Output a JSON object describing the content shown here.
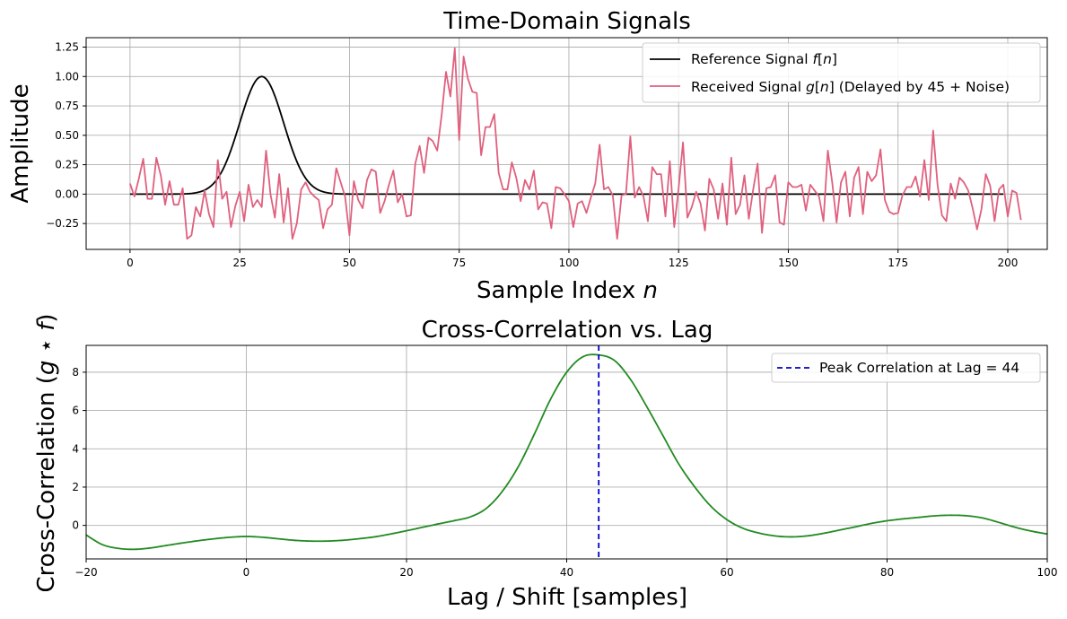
{
  "chart_data": [
    {
      "type": "line",
      "title": "Time-Domain Signals",
      "xlabel": "Sample Index n",
      "ylabel": "Amplitude",
      "xlim": [
        -10,
        209
      ],
      "ylim": [
        -0.47,
        1.33
      ],
      "xticks": [
        0,
        25,
        50,
        75,
        100,
        125,
        150,
        175,
        200
      ],
      "yticks": [
        -0.25,
        0.0,
        0.25,
        0.5,
        0.75,
        1.0,
        1.25
      ],
      "xtick_labels": [
        "0",
        "25",
        "50",
        "75",
        "100",
        "125",
        "150",
        "175",
        "200"
      ],
      "ytick_labels": [
        "−0.25",
        "0.00",
        "0.25",
        "0.50",
        "0.75",
        "1.00",
        "1.25"
      ],
      "grid": true,
      "legend_position": "top-right",
      "series": [
        {
          "name": "Reference Signal f[n]",
          "color": "#000000",
          "shape": "gaussian",
          "center": 30,
          "amplitude": 1.0,
          "width": 5,
          "x_range": [
            0,
            199
          ]
        },
        {
          "name": "Received Signal g[n] (Delayed by 45 + Noise)",
          "color": "#e0607e",
          "x_start": 0,
          "values": [
            0.09,
            -0.02,
            0.13,
            0.3,
            -0.04,
            -0.04,
            0.31,
            0.16,
            -0.09,
            0.11,
            -0.09,
            -0.09,
            0.05,
            -0.38,
            -0.35,
            -0.11,
            -0.19,
            0.03,
            -0.17,
            -0.28,
            0.29,
            -0.04,
            0.02,
            -0.28,
            -0.1,
            0.02,
            -0.23,
            0.08,
            -0.11,
            -0.05,
            -0.11,
            0.37,
            0.0,
            -0.2,
            0.17,
            -0.24,
            0.05,
            -0.38,
            -0.25,
            0.04,
            0.1,
            0.02,
            -0.02,
            -0.05,
            -0.29,
            -0.13,
            -0.09,
            0.22,
            0.1,
            -0.02,
            -0.35,
            0.11,
            -0.05,
            -0.12,
            0.12,
            0.21,
            0.19,
            -0.16,
            -0.06,
            0.08,
            0.2,
            -0.07,
            0.0,
            -0.19,
            -0.18,
            0.26,
            0.41,
            0.18,
            0.48,
            0.45,
            0.37,
            0.67,
            1.04,
            0.83,
            1.24,
            0.46,
            1.17,
            0.98,
            0.87,
            0.86,
            0.33,
            0.57,
            0.57,
            0.68,
            0.18,
            0.04,
            0.04,
            0.27,
            0.14,
            -0.06,
            0.12,
            0.04,
            0.2,
            -0.13,
            -0.07,
            -0.08,
            -0.29,
            0.06,
            0.05,
            0.0,
            -0.06,
            -0.28,
            -0.08,
            -0.06,
            -0.16,
            -0.03,
            0.09,
            0.42,
            0.04,
            0.06,
            -0.01,
            -0.38,
            -0.01,
            0.0,
            0.49,
            -0.03,
            0.06,
            -0.02,
            -0.23,
            0.23,
            0.17,
            0.17,
            -0.19,
            0.28,
            -0.28,
            0.05,
            0.44,
            -0.2,
            -0.11,
            0.02,
            -0.08,
            -0.31,
            0.13,
            0.04,
            -0.21,
            0.09,
            -0.26,
            0.31,
            -0.17,
            -0.09,
            0.16,
            -0.21,
            0.04,
            0.26,
            -0.33,
            0.05,
            0.06,
            0.16,
            -0.24,
            -0.26,
            0.1,
            0.06,
            0.06,
            0.08,
            -0.14,
            0.08,
            0.03,
            -0.02,
            -0.23,
            0.37,
            0.1,
            -0.24,
            0.1,
            0.19,
            -0.19,
            0.14,
            0.23,
            -0.17,
            0.19,
            0.11,
            0.16,
            0.38,
            -0.05,
            -0.15,
            -0.17,
            -0.16,
            -0.01,
            0.06,
            0.06,
            0.15,
            -0.02,
            0.29,
            -0.05,
            0.54,
            0.08,
            -0.18,
            -0.23,
            0.09,
            -0.04,
            0.14,
            0.1,
            0.03,
            -0.12,
            -0.3,
            -0.13,
            0.17,
            0.07,
            -0.23,
            0.04,
            0.08,
            -0.19,
            0.03,
            0.01,
            -0.22
          ]
        }
      ]
    },
    {
      "type": "line",
      "title": "Cross-Correlation vs. Lag",
      "xlabel": "Lag / Shift [samples]",
      "ylabel": "Cross-Correlation (g ⋆ f)",
      "xlim": [
        -20,
        100
      ],
      "ylim": [
        -1.75,
        9.4
      ],
      "xticks": [
        -20,
        0,
        20,
        40,
        60,
        80,
        100
      ],
      "yticks": [
        0,
        2,
        4,
        6,
        8
      ],
      "xtick_labels": [
        "−20",
        "0",
        "20",
        "40",
        "60",
        "80",
        "100"
      ],
      "ytick_labels": [
        "0",
        "2",
        "4",
        "6",
        "8"
      ],
      "grid": true,
      "legend_position": "top-right",
      "series": [
        {
          "name": "",
          "color": "#228b22",
          "x": [
            -20,
            -18,
            -16,
            -14,
            -12,
            -10,
            -8,
            -6,
            -4,
            -2,
            0,
            2,
            4,
            6,
            8,
            10,
            12,
            14,
            16,
            18,
            20,
            22,
            24,
            26,
            28,
            30,
            32,
            34,
            36,
            38,
            40,
            42,
            44,
            46,
            48,
            50,
            52,
            54,
            56,
            58,
            60,
            62,
            64,
            66,
            68,
            70,
            72,
            74,
            76,
            78,
            80,
            82,
            84,
            86,
            88,
            90,
            92,
            94,
            96,
            98,
            100
          ],
          "values": [
            -0.5,
            -1.0,
            -1.2,
            -1.25,
            -1.18,
            -1.05,
            -0.92,
            -0.8,
            -0.7,
            -0.62,
            -0.58,
            -0.62,
            -0.7,
            -0.78,
            -0.82,
            -0.82,
            -0.78,
            -0.7,
            -0.6,
            -0.45,
            -0.28,
            -0.1,
            0.08,
            0.25,
            0.45,
            0.9,
            1.8,
            3.1,
            4.8,
            6.6,
            8.0,
            8.8,
            8.9,
            8.6,
            7.6,
            6.2,
            4.7,
            3.2,
            2.0,
            1.0,
            0.3,
            -0.15,
            -0.4,
            -0.55,
            -0.6,
            -0.55,
            -0.42,
            -0.25,
            -0.08,
            0.1,
            0.24,
            0.34,
            0.42,
            0.5,
            0.53,
            0.5,
            0.38,
            0.15,
            -0.1,
            -0.3,
            -0.45
          ]
        }
      ],
      "annotations": [
        {
          "type": "vline",
          "x": 44,
          "label": "Peak Correlation at Lag = 44",
          "color": "#0000cc",
          "style": "dashed"
        }
      ]
    }
  ]
}
